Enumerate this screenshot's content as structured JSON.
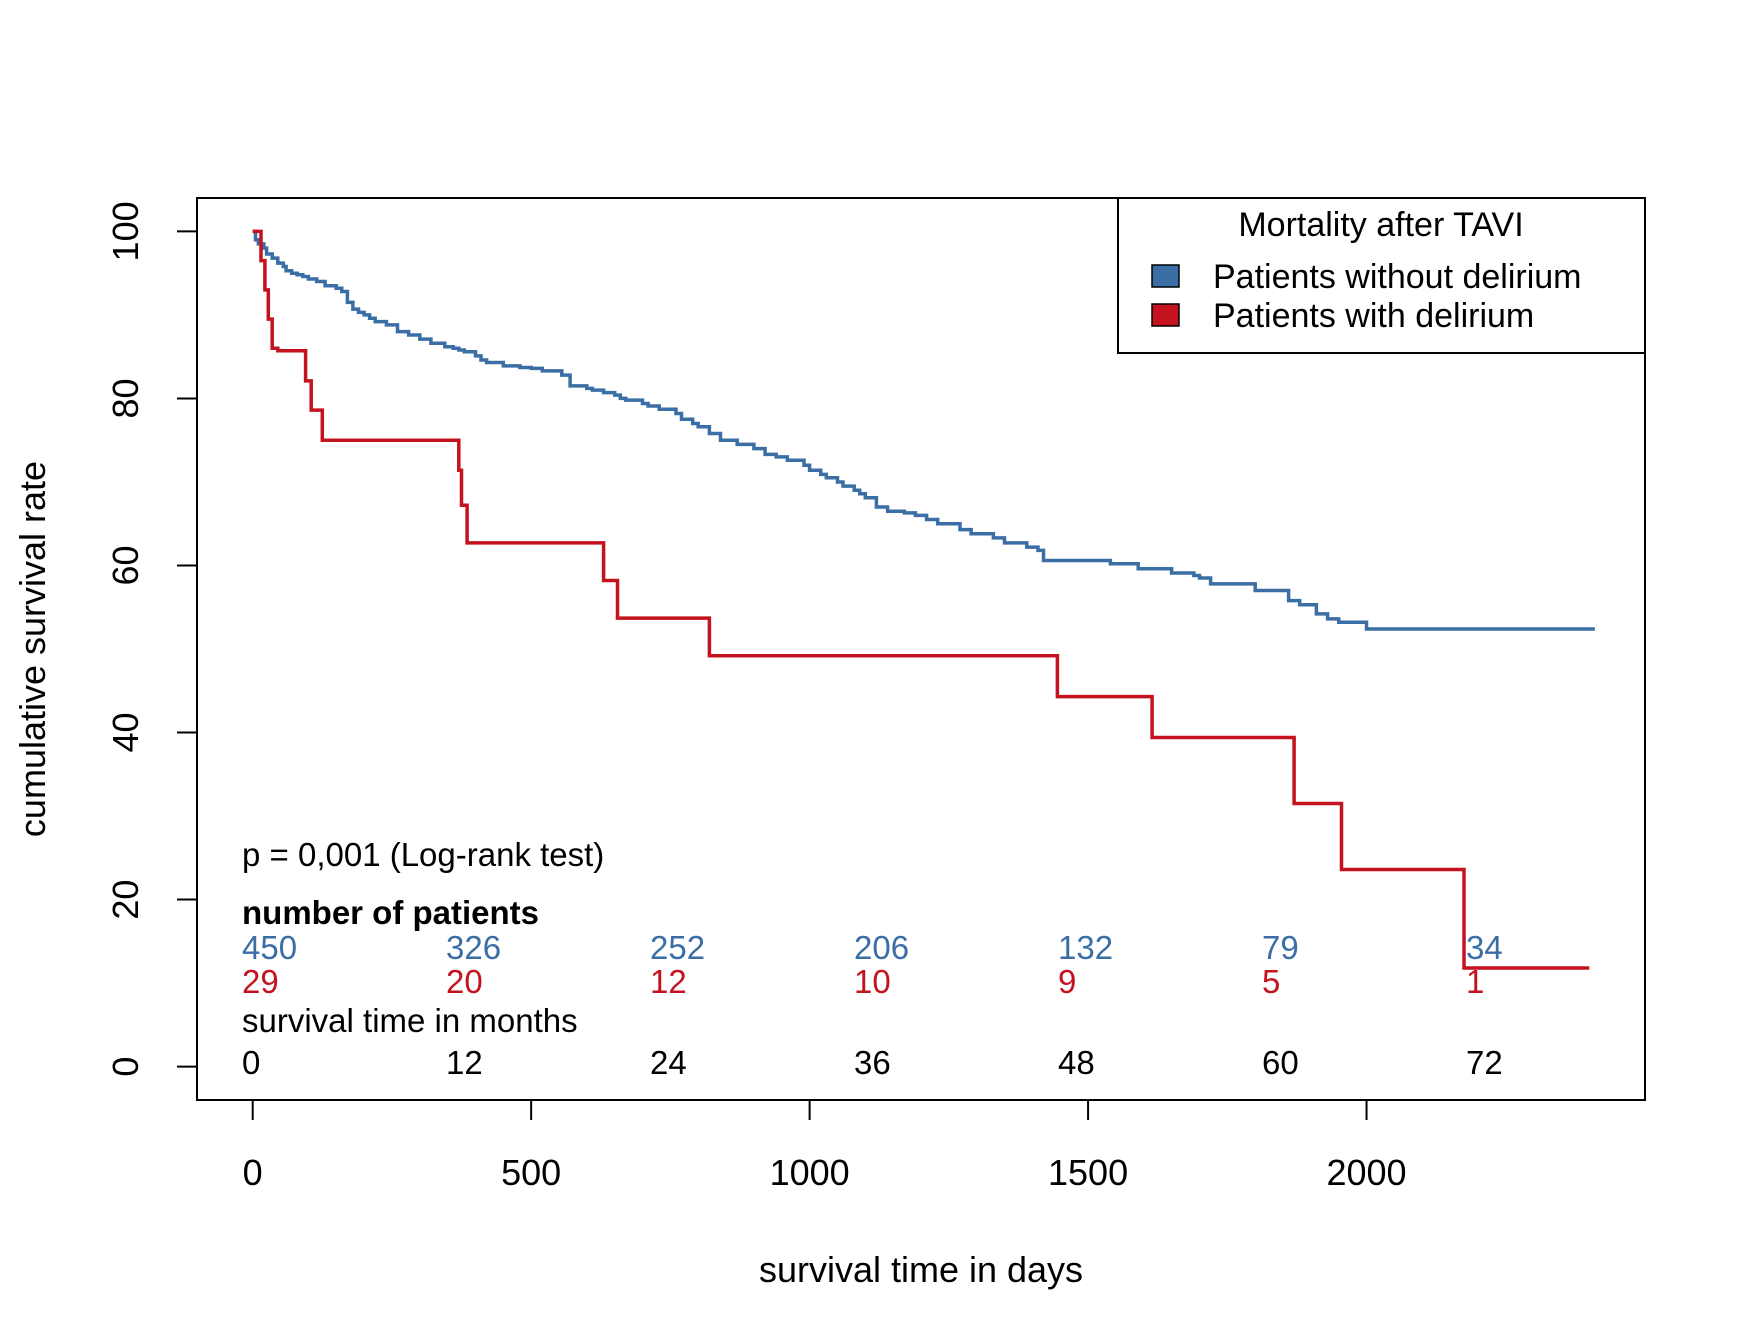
{
  "chart_data": {
    "type": "line",
    "title": "",
    "xlabel": "survival time in days",
    "ylabel": "cumulative survival rate",
    "xlim": [
      -100,
      2500
    ],
    "ylim": [
      -4,
      104
    ],
    "x_ticks": [
      0,
      500,
      1000,
      1500,
      2000
    ],
    "y_ticks": [
      0,
      20,
      40,
      60,
      80,
      100
    ],
    "x_tick_labels": [
      "0",
      "500",
      "1000",
      "1500",
      "2000"
    ],
    "y_tick_labels": [
      "0",
      "20",
      "40",
      "60",
      "80",
      "100"
    ],
    "grid": false,
    "step": true,
    "legend": {
      "title": "Mortality after TAVI",
      "placement": "top-right",
      "entries": [
        "Patients without delirium",
        "Patients with delirium"
      ]
    },
    "series": [
      {
        "name": "Patients without delirium",
        "color": "#3a6ea5",
        "x": [
          0,
          5,
          10,
          20,
          25,
          35,
          45,
          55,
          60,
          70,
          80,
          90,
          100,
          115,
          130,
          150,
          160,
          170,
          180,
          190,
          200,
          210,
          220,
          240,
          260,
          280,
          300,
          320,
          345,
          360,
          370,
          380,
          400,
          410,
          420,
          450,
          480,
          500,
          520,
          555,
          570,
          600,
          610,
          630,
          650,
          660,
          670,
          700,
          710,
          730,
          760,
          770,
          790,
          800,
          820,
          840,
          870,
          900,
          920,
          940,
          960,
          990,
          1000,
          1020,
          1030,
          1050,
          1060,
          1080,
          1090,
          1100,
          1120,
          1140,
          1170,
          1190,
          1210,
          1230,
          1270,
          1290,
          1330,
          1350,
          1390,
          1410,
          1420,
          1480,
          1540,
          1590,
          1650,
          1690,
          1700,
          1720,
          1800,
          1860,
          1880,
          1910,
          1930,
          1950,
          2000,
          2150,
          2410
        ],
        "y": [
          100,
          99,
          98.5,
          98,
          97.3,
          96.8,
          96.2,
          95.8,
          95.3,
          95,
          94.8,
          94.6,
          94.3,
          94,
          93.5,
          93.2,
          92.8,
          91.5,
          90.7,
          90.3,
          90,
          89.6,
          89.2,
          88.8,
          88,
          87.6,
          87.1,
          86.6,
          86.2,
          86,
          85.8,
          85.6,
          85.1,
          84.6,
          84.3,
          83.9,
          83.7,
          83.6,
          83.3,
          82.8,
          81.5,
          81.2,
          81,
          80.7,
          80.4,
          80,
          79.8,
          79.4,
          79.1,
          78.7,
          78.2,
          77.5,
          77,
          76.6,
          75.8,
          75,
          74.5,
          74,
          73.3,
          73,
          72.6,
          72,
          71.4,
          70.9,
          70.5,
          70,
          69.5,
          69,
          68.6,
          68.1,
          67,
          66.5,
          66.3,
          66,
          65.5,
          65,
          64.3,
          63.8,
          63.3,
          62.7,
          62.2,
          61.8,
          60.6,
          60.6,
          60.2,
          59.6,
          59.1,
          58.8,
          58.5,
          57.8,
          57,
          55.8,
          55.3,
          54.2,
          53.6,
          53.2,
          52.4,
          52.4,
          52.4
        ]
      },
      {
        "name": "Patients with delirium",
        "color": "#c4121e",
        "x": [
          0,
          15,
          22,
          28,
          35,
          45,
          95,
          105,
          125,
          370,
          375,
          385,
          420,
          630,
          655,
          820,
          1445,
          1615,
          1870,
          1955,
          2175,
          2400
        ],
        "y": [
          100,
          96.5,
          93,
          89.5,
          86,
          85.7,
          82.1,
          78.6,
          75,
          71.4,
          67.2,
          62.7,
          62.7,
          58.2,
          53.7,
          49.2,
          44.3,
          39.4,
          31.5,
          23.6,
          11.8,
          11.8
        ]
      }
    ],
    "annotations": {
      "p_value": "p = 0,001 (Log-rank test)",
      "risk_table_header": "number of patients",
      "months_header": "survival time in months",
      "risk_without_delirium": [
        "450",
        "326",
        "252",
        "206",
        "132",
        "79",
        "34"
      ],
      "risk_with_delirium": [
        "29",
        "20",
        "12",
        "10",
        "9",
        "5",
        "1"
      ],
      "months": [
        "0",
        "12",
        "24",
        "36",
        "48",
        "60",
        "72"
      ]
    }
  }
}
